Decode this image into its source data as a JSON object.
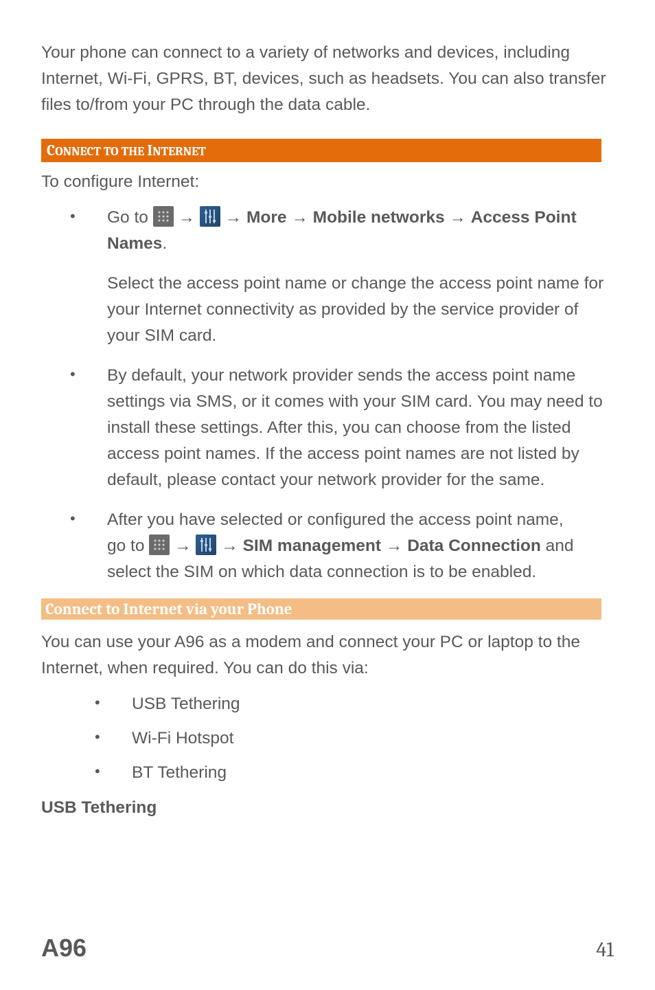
{
  "intro": "Your phone can connect to a variety of networks and devices, including Internet, Wi-Fi, GPRS, BT, devices, such as headsets. You can also transfer files to/from your PC through the data cable.",
  "section1": {
    "heading_pre": "C",
    "heading_mid1": "ONNECT TO THE ",
    "heading_mid2": "I",
    "heading_post": "NTERNET",
    "lead": "To configure Internet:",
    "b1_pre": "Go to ",
    "arrow": " → ",
    "b1_more": "More",
    "b1_mobile": "Mobile networks",
    "b1_access": "Access Point Names",
    "b1_period": ".",
    "sub1": "Select the access point name or change the access point name for your Internet connectivity as provided by the service provider of your SIM card.",
    "b2": "By default, your network provider sends the access point name settings via SMS, or it comes with your SIM card. You may need to install these settings. After this, you can choose from the listed access point names. If the access point names are not listed by default, please contact your network provider for the same.",
    "b3_line1": "After you have selected or configured the access point name,",
    "b3_pre": "go to ",
    "b3_sim": "SIM management",
    "b3_data": "Data Connection",
    "b3_rest": " and select the SIM on which data connection is to be enabled."
  },
  "section2": {
    "heading": "Connect to Internet via your Phone",
    "body": "You can use your A96 as a modem and connect your PC or laptop to the Internet, when required. You can do this via:",
    "items": [
      "USB Tethering",
      "Wi-Fi Hotspot",
      "BT Tethering"
    ],
    "subheading": "USB Tethering"
  },
  "footer": {
    "model": "A96",
    "page": "41"
  }
}
